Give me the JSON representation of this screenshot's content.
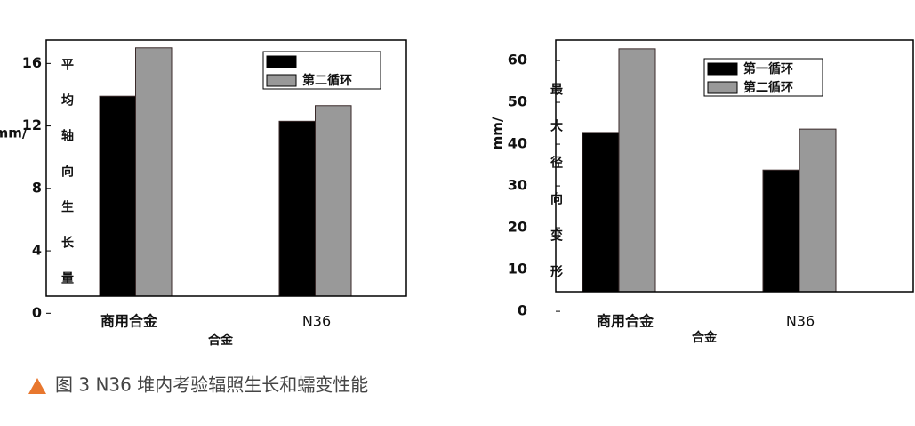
{
  "chart_data": [
    {
      "type": "bar",
      "ylabel": "mm/",
      "inner_label": "平均轴向生长量",
      "xlabel": "合金",
      "categories": [
        "商用合金",
        "N36"
      ],
      "series": [
        {
          "name": null,
          "color": "#000000",
          "values": [
            13.9,
            12.3
          ]
        },
        {
          "name": "第二循环",
          "color": "#999999",
          "values": [
            17.0,
            13.3
          ]
        }
      ],
      "ylim": [
        1.1,
        17.5
      ],
      "yticks": [
        0,
        4,
        8,
        12,
        16
      ]
    },
    {
      "type": "bar",
      "ylabel": "mm/",
      "inner_label": "最大径向变形",
      "xlabel": "合金",
      "categories": [
        "商用合金",
        "N36"
      ],
      "series": [
        {
          "name": "第一循环",
          "color": "#000000",
          "values": [
            42.8,
            33.8
          ]
        },
        {
          "name": "第二循环",
          "color": "#999999",
          "values": [
            62.8,
            43.6
          ]
        }
      ],
      "ylim": [
        4.7,
        64.9
      ],
      "yticks": [
        0,
        10,
        20,
        30,
        40,
        50,
        60
      ]
    }
  ],
  "caption": "图 3  N36 堆内考验辐照生长和蠕变性能"
}
